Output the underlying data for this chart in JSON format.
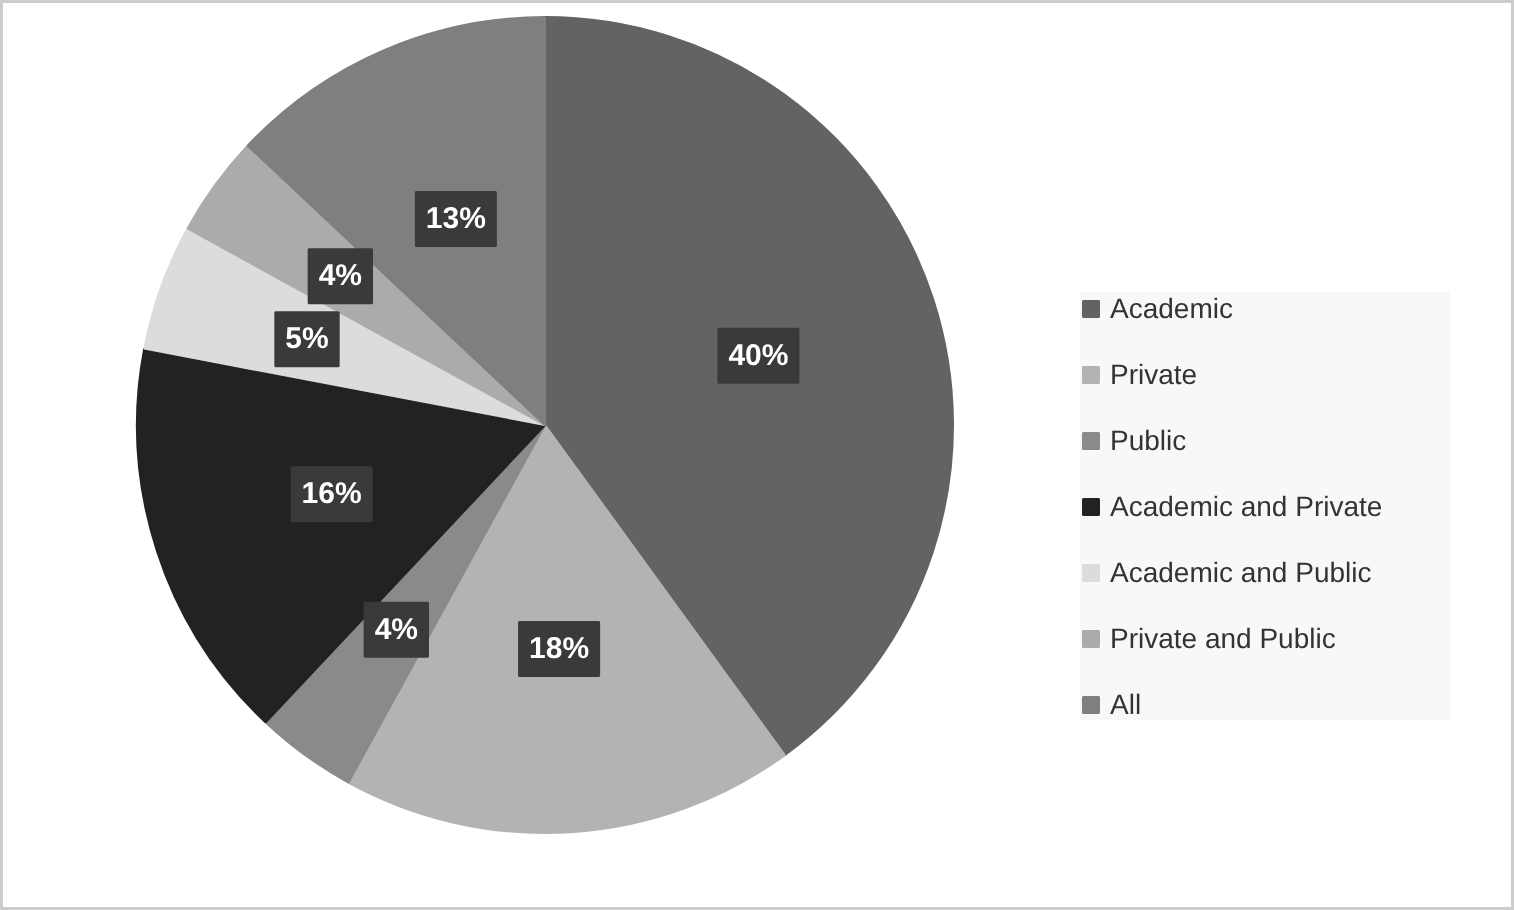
{
  "chart_data": {
    "type": "pie",
    "categories": [
      "Academic",
      "Private",
      "Public",
      "Academic and Private",
      "Academic and Public",
      "Private and Public",
      "All"
    ],
    "values": [
      40,
      18,
      4,
      16,
      5,
      4,
      13
    ],
    "colors": [
      "#636363",
      "#b3b3b3",
      "#8a8a8a",
      "#222222",
      "#dcdcdc",
      "#ababab",
      "#7f7f7f"
    ],
    "value_labels": [
      "40%",
      "18%",
      "4%",
      "16%",
      "5%",
      "4%",
      "13%"
    ],
    "legend": "right"
  }
}
